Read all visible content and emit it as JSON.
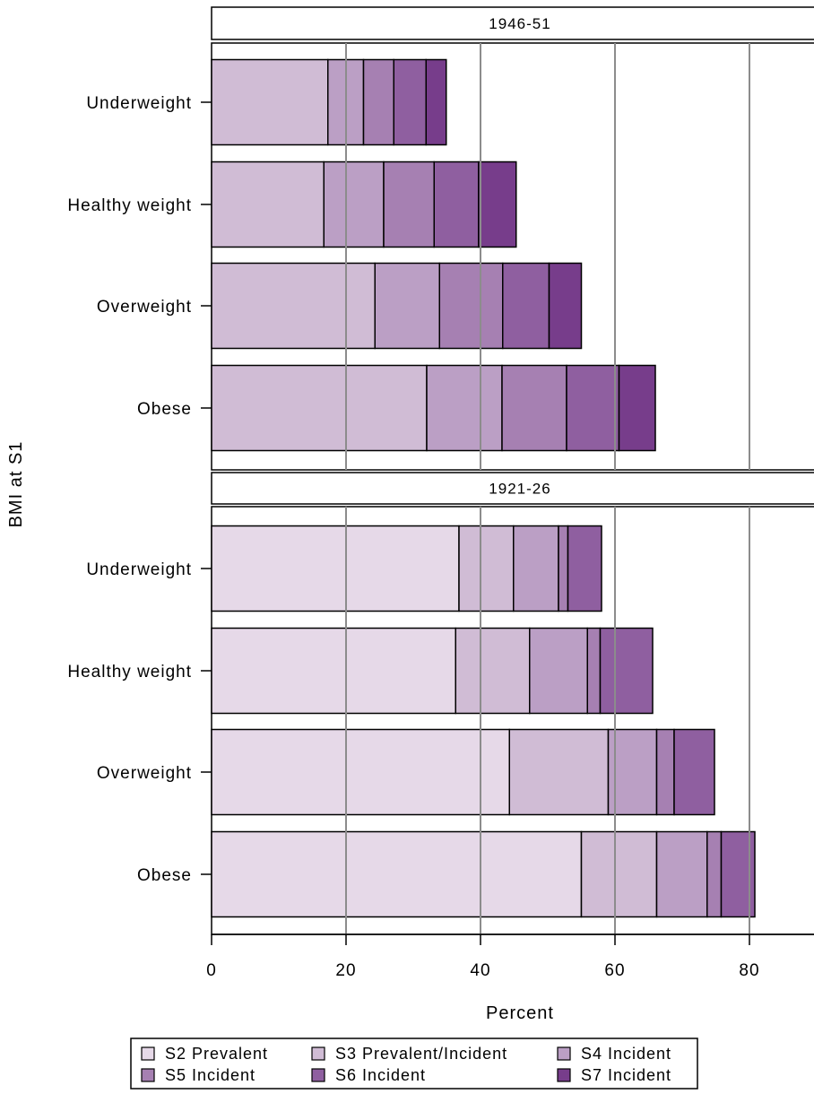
{
  "chart_data": {
    "type": "bar",
    "orientation": "horizontal",
    "stacked": true,
    "xlabel": "Percent",
    "ylabel": "BMI at S1",
    "xlim": [
      0,
      90
    ],
    "xticks": [
      0,
      20,
      40,
      60,
      80
    ],
    "xgrid": true,
    "legend_position": "bottom",
    "categories": [
      "Underweight",
      "Healthy weight",
      "Overweight",
      "Obese"
    ],
    "legend": [
      {
        "name": "S2 Prevalent",
        "color": "#e6d9e8"
      },
      {
        "name": "S3 Prevalent/Incident",
        "color": "#d0bcd5"
      },
      {
        "name": "S4 Incident",
        "color": "#bb9fc5"
      },
      {
        "name": "S5 Incident",
        "color": "#a680b2"
      },
      {
        "name": "S6 Incident",
        "color": "#8f5fa0"
      },
      {
        "name": "S7 Incident",
        "color": "#773d8b"
      }
    ],
    "panels": [
      {
        "label": "1946-51",
        "series": [
          {
            "name": "S3 Prevalent/Incident",
            "color": "#d0bcd5",
            "values": [
              17.3,
              16.7,
              24.3,
              32.0
            ]
          },
          {
            "name": "S4 Incident",
            "color": "#bb9fc5",
            "values": [
              5.3,
              8.9,
              9.6,
              11.2
            ]
          },
          {
            "name": "S5 Incident",
            "color": "#a680b2",
            "values": [
              4.5,
              7.5,
              9.4,
              9.6
            ]
          },
          {
            "name": "S6 Incident",
            "color": "#8f5fa0",
            "values": [
              4.8,
              6.6,
              6.9,
              7.8
            ]
          },
          {
            "name": "S7 Incident",
            "color": "#773d8b",
            "values": [
              3.0,
              5.6,
              4.8,
              5.4
            ]
          }
        ]
      },
      {
        "label": "1921-26",
        "series": [
          {
            "name": "S2 Prevalent",
            "color": "#e6d9e8",
            "values": [
              36.8,
              36.3,
              44.3,
              55.0
            ]
          },
          {
            "name": "S3 Prevalent/Incident",
            "color": "#d0bcd5",
            "values": [
              8.1,
              11.0,
              14.7,
              11.2
            ]
          },
          {
            "name": "S4 Incident",
            "color": "#bb9fc5",
            "values": [
              6.7,
              8.6,
              7.2,
              7.5
            ]
          },
          {
            "name": "S5 Incident",
            "color": "#a680b2",
            "values": [
              1.4,
              1.9,
              2.6,
              2.1
            ]
          },
          {
            "name": "S6 Incident",
            "color": "#8f5fa0",
            "values": [
              5.0,
              7.8,
              6.0,
              5.0
            ]
          }
        ]
      }
    ]
  }
}
